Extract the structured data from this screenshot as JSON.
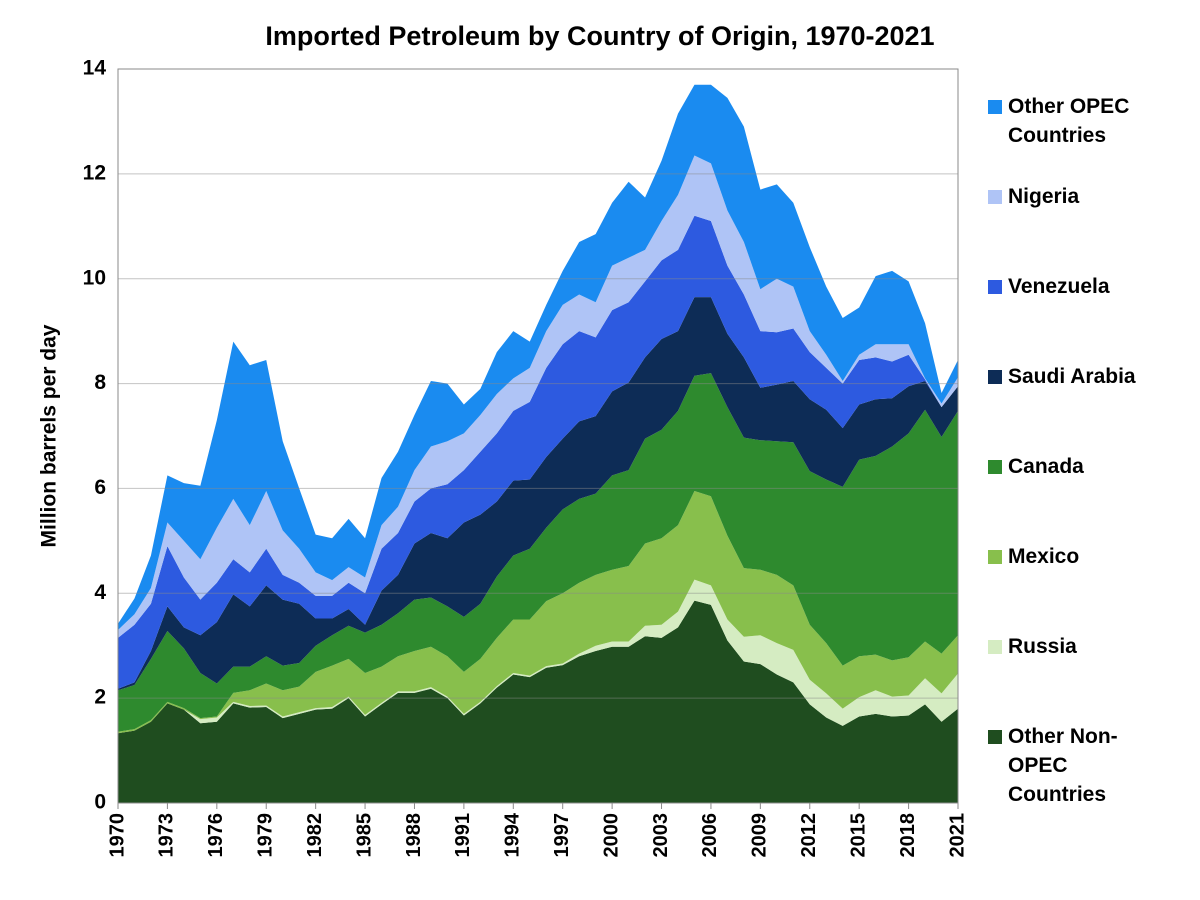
{
  "chart_data": {
    "type": "stacked_area",
    "title": "Imported Petroleum by Country of Origin, 1970-2021",
    "y_label": "Million barrels per day",
    "x": [
      1970,
      1971,
      1972,
      1973,
      1974,
      1975,
      1976,
      1977,
      1978,
      1979,
      1980,
      1981,
      1982,
      1983,
      1984,
      1985,
      1986,
      1987,
      1988,
      1989,
      1990,
      1991,
      1992,
      1993,
      1994,
      1995,
      1996,
      1997,
      1998,
      1999,
      2000,
      2001,
      2002,
      2003,
      2004,
      2005,
      2006,
      2007,
      2008,
      2009,
      2010,
      2011,
      2012,
      2013,
      2014,
      2015,
      2016,
      2017,
      2018,
      2019,
      2020,
      2021
    ],
    "xlim": [
      1970,
      2021
    ],
    "xticks": [
      1970,
      1973,
      1976,
      1979,
      1982,
      1985,
      1988,
      1991,
      1994,
      1997,
      2000,
      2003,
      2006,
      2009,
      2012,
      2015,
      2018,
      2021
    ],
    "ylim": [
      0,
      14
    ],
    "yticks": [
      0,
      2,
      4,
      6,
      8,
      10,
      12,
      14
    ],
    "grid": true,
    "series": [
      {
        "name": "Other Non-OPEC Countries",
        "color": "#1f4d1f",
        "values": [
          1.33,
          1.38,
          1.55,
          1.9,
          1.78,
          1.52,
          1.55,
          1.9,
          1.82,
          1.83,
          1.62,
          1.7,
          1.78,
          1.8,
          2.0,
          1.65,
          1.88,
          2.1,
          2.1,
          2.18,
          2.0,
          1.67,
          1.9,
          2.2,
          2.45,
          2.4,
          2.58,
          2.63,
          2.8,
          2.9,
          2.98,
          2.98,
          3.18,
          3.15,
          3.35,
          3.86,
          3.78,
          3.1,
          2.7,
          2.65,
          2.45,
          2.3,
          1.88,
          1.63,
          1.47,
          1.65,
          1.7,
          1.65,
          1.67,
          1.88,
          1.55,
          1.8
        ]
      },
      {
        "name": "Russia",
        "color": "#d5ecc2",
        "values": [
          0,
          0,
          0,
          0,
          0,
          0.08,
          0.08,
          0.03,
          0.03,
          0.03,
          0.03,
          0.03,
          0.03,
          0.03,
          0.03,
          0.03,
          0.03,
          0.03,
          0.03,
          0.03,
          0.03,
          0.03,
          0.03,
          0.03,
          0.03,
          0.03,
          0.03,
          0.03,
          0.05,
          0.1,
          0.1,
          0.1,
          0.2,
          0.25,
          0.3,
          0.4,
          0.37,
          0.4,
          0.47,
          0.55,
          0.6,
          0.62,
          0.47,
          0.46,
          0.33,
          0.37,
          0.45,
          0.38,
          0.38,
          0.5,
          0.54,
          0.67
        ]
      },
      {
        "name": "Mexico",
        "color": "#88bf4c",
        "values": [
          0.03,
          0.03,
          0.03,
          0.03,
          0.03,
          0.02,
          0.02,
          0.17,
          0.3,
          0.42,
          0.5,
          0.49,
          0.69,
          0.79,
          0.72,
          0.8,
          0.69,
          0.67,
          0.77,
          0.77,
          0.77,
          0.8,
          0.82,
          0.92,
          1.02,
          1.07,
          1.24,
          1.34,
          1.35,
          1.35,
          1.37,
          1.44,
          1.57,
          1.65,
          1.65,
          1.69,
          1.7,
          1.6,
          1.31,
          1.25,
          1.3,
          1.23,
          1.05,
          0.96,
          0.82,
          0.78,
          0.68,
          0.69,
          0.73,
          0.7,
          0.76,
          0.73
        ]
      },
      {
        "name": "Canada",
        "color": "#2e8a2e",
        "values": [
          0.79,
          0.84,
          1.17,
          1.35,
          1.14,
          0.86,
          0.63,
          0.5,
          0.45,
          0.52,
          0.47,
          0.45,
          0.5,
          0.58,
          0.63,
          0.77,
          0.8,
          0.82,
          0.98,
          0.94,
          0.95,
          1.05,
          1.05,
          1.17,
          1.22,
          1.35,
          1.4,
          1.6,
          1.6,
          1.55,
          1.8,
          1.83,
          2.0,
          2.07,
          2.18,
          2.2,
          2.35,
          2.45,
          2.49,
          2.47,
          2.55,
          2.73,
          2.93,
          3.12,
          3.41,
          3.75,
          3.79,
          4.08,
          4.27,
          4.42,
          4.13,
          4.28
        ]
      },
      {
        "name": "Saudi Arabia",
        "color": "#0d2c56",
        "values": [
          0.03,
          0.05,
          0.15,
          0.47,
          0.4,
          0.72,
          1.17,
          1.38,
          1.15,
          1.35,
          1.26,
          1.13,
          0.52,
          0.32,
          0.32,
          0.15,
          0.65,
          0.73,
          1.07,
          1.23,
          1.3,
          1.8,
          1.7,
          1.43,
          1.43,
          1.32,
          1.35,
          1.35,
          1.48,
          1.48,
          1.6,
          1.67,
          1.55,
          1.73,
          1.52,
          1.5,
          1.45,
          1.4,
          1.53,
          1.0,
          1.08,
          1.17,
          1.37,
          1.33,
          1.12,
          1.05,
          1.08,
          0.92,
          0.9,
          0.55,
          0.57,
          0.47
        ]
      },
      {
        "name": "Venezuela",
        "color": "#2d5ae0",
        "values": [
          0.97,
          1.1,
          0.9,
          1.15,
          0.95,
          0.68,
          0.75,
          0.67,
          0.65,
          0.7,
          0.47,
          0.4,
          0.43,
          0.43,
          0.5,
          0.6,
          0.8,
          0.8,
          0.8,
          0.85,
          1.03,
          1.0,
          1.2,
          1.3,
          1.33,
          1.48,
          1.7,
          1.8,
          1.72,
          1.5,
          1.55,
          1.53,
          1.45,
          1.5,
          1.55,
          1.55,
          1.45,
          1.3,
          1.2,
          1.08,
          1.0,
          1.0,
          0.9,
          0.8,
          0.85,
          0.85,
          0.8,
          0.7,
          0.6,
          0.03,
          0,
          0
        ]
      },
      {
        "name": "Nigeria",
        "color": "#afc4f6",
        "values": [
          0.15,
          0.2,
          0.3,
          0.45,
          0.7,
          0.77,
          1.05,
          1.15,
          0.9,
          1.1,
          0.85,
          0.65,
          0.45,
          0.3,
          0.3,
          0.3,
          0.45,
          0.5,
          0.6,
          0.8,
          0.82,
          0.7,
          0.7,
          0.75,
          0.62,
          0.65,
          0.7,
          0.75,
          0.7,
          0.67,
          0.85,
          0.85,
          0.6,
          0.75,
          1.05,
          1.15,
          1.1,
          1.05,
          1.0,
          0.8,
          1.02,
          0.8,
          0.4,
          0.25,
          0.05,
          0.1,
          0.25,
          0.33,
          0.2,
          0.02,
          0.07,
          0.17
        ]
      },
      {
        "name": "Other OPEC Countries",
        "color": "#1a8bf0",
        "values": [
          0.12,
          0.3,
          0.62,
          0.9,
          1.1,
          1.4,
          2.05,
          3.0,
          3.05,
          2.5,
          1.7,
          1.15,
          0.72,
          0.8,
          0.92,
          0.75,
          0.9,
          1.05,
          1.05,
          1.25,
          1.1,
          0.55,
          0.5,
          0.8,
          0.9,
          0.5,
          0.5,
          0.65,
          1.0,
          1.3,
          1.2,
          1.45,
          1.0,
          1.15,
          1.55,
          1.35,
          1.5,
          2.15,
          2.2,
          1.9,
          1.8,
          1.6,
          1.6,
          1.3,
          1.2,
          0.9,
          1.3,
          1.4,
          1.2,
          1.05,
          0.2,
          0.33
        ]
      }
    ]
  }
}
